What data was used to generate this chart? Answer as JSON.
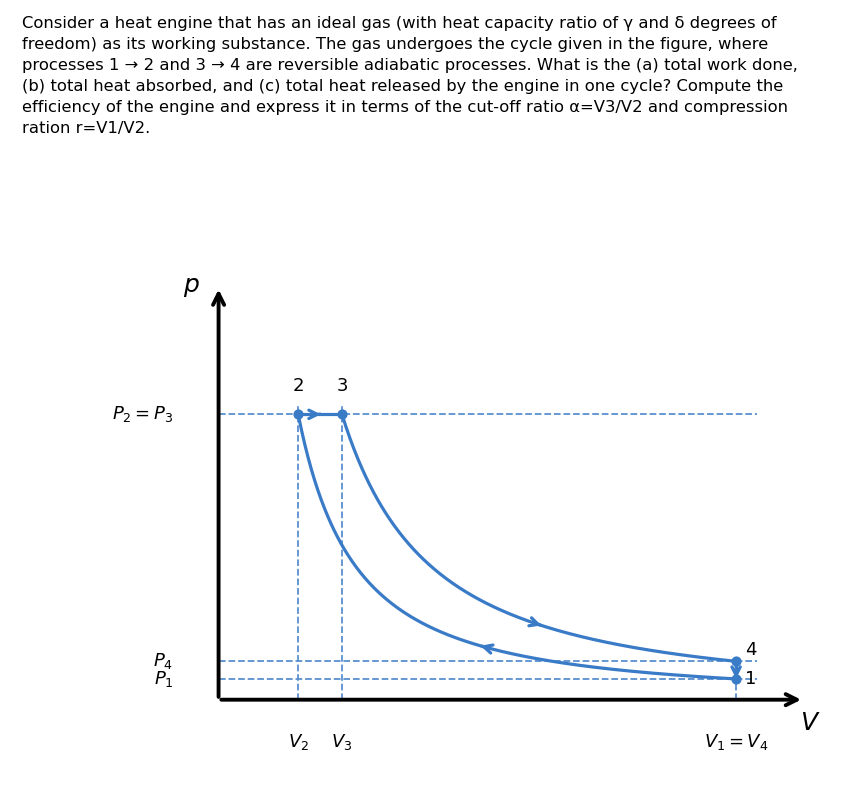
{
  "title_text": "Consider a heat engine that has an ideal gas (with heat capacity ratio of γ and δ degrees of\nfreedom) as its working substance. The gas undergoes the cycle given in the figure, where\nprocesses 1 → 2 and 3 → 4 are reversible adiabatic processes. What is the (a) total work done,\n(b) total heat absorbed, and (c) total heat released by the engine in one cycle? Compute the\nefficiency of the engine and express it in terms of the cut-off ratio α=V3/V2 and compression\nration r=V1/V2.",
  "curve_color": "#3a7bc8",
  "curve_linewidth": 2.3,
  "dashed_color": "#5a90d0",
  "background_color": "#ffffff",
  "gamma": 1.4,
  "V2": 1.0,
  "V3": 1.55,
  "V1": 6.5,
  "P2": 10.0,
  "label_fontsize": 13,
  "point_label_fontsize": 13,
  "axis_label_fontsize": 16,
  "text_fontsize": 11.8
}
